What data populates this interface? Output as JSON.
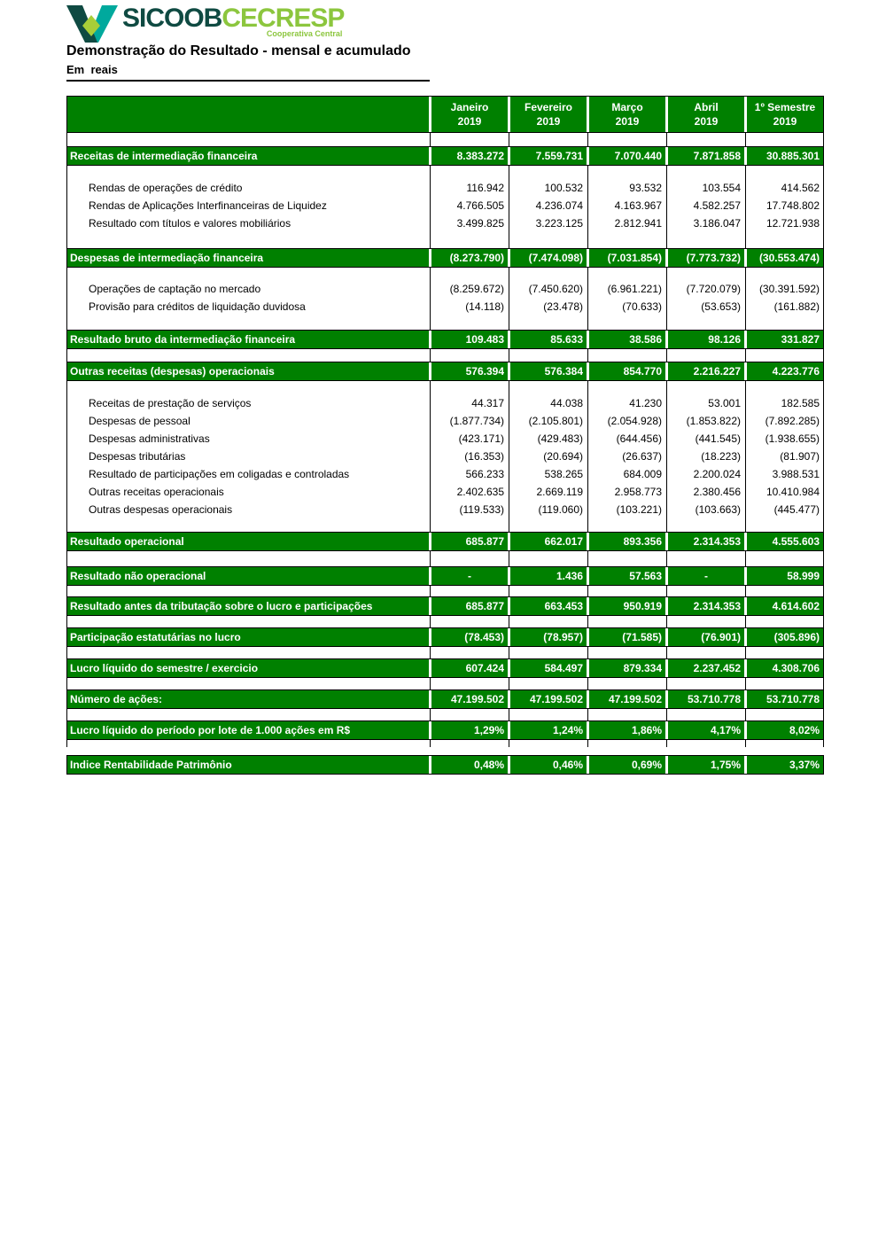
{
  "brand": {
    "name": "SICOOB",
    "suffix": "CECRESP",
    "tagline": "Cooperativa Central"
  },
  "title": "Demonstração do Resultado - mensal e acumulado",
  "unit_label": "Em  reais",
  "colors": {
    "table_green": "#008000",
    "header_text": "#ffffff",
    "brand_dark": "#0f4a42",
    "brand_teal": "#00a99d",
    "brand_lime": "#8cc63e",
    "border_black": "#000000"
  },
  "table": {
    "column_headers": [
      {
        "month": "Janeiro",
        "year": "2019"
      },
      {
        "month": "Fevereiro",
        "year": "2019"
      },
      {
        "month": "Março",
        "year": "2019"
      },
      {
        "month": "Abril",
        "year": "2019"
      },
      {
        "month": "1º Semestre",
        "year": "2019"
      }
    ],
    "rows": [
      {
        "type": "section",
        "label": "Receitas de intermediação financeira",
        "values": [
          "8.383.272",
          "7.559.731",
          "7.070.440",
          "7.871.858",
          "30.885.301"
        ]
      },
      {
        "type": "detail",
        "label": "Rendas de operações de crédito",
        "values": [
          "116.942",
          "100.532",
          "93.532",
          "103.554",
          "414.562"
        ]
      },
      {
        "type": "detail",
        "label": "Rendas de Aplicações Interfinanceiras de Liquidez",
        "values": [
          "4.766.505",
          "4.236.074",
          "4.163.967",
          "4.582.257",
          "17.748.802"
        ]
      },
      {
        "type": "detail",
        "label": "Resultado com títulos e valores mobiliários",
        "values": [
          "3.499.825",
          "3.223.125",
          "2.812.941",
          "3.186.047",
          "12.721.938"
        ]
      },
      {
        "type": "section",
        "label": "Despesas de intermediação financeira",
        "values": [
          "(8.273.790)",
          "(7.474.098)",
          "(7.031.854)",
          "(7.773.732)",
          "(30.553.474)"
        ]
      },
      {
        "type": "detail",
        "label": "Operações de captação no mercado",
        "values": [
          "(8.259.672)",
          "(7.450.620)",
          "(6.961.221)",
          "(7.720.079)",
          "(30.391.592)"
        ]
      },
      {
        "type": "detail",
        "label": "Provisão para créditos de liquidação duvidosa",
        "values": [
          "(14.118)",
          "(23.478)",
          "(70.633)",
          "(53.653)",
          "(161.882)"
        ]
      },
      {
        "type": "section",
        "label": "Resultado bruto da intermediação financeira",
        "values": [
          "109.483",
          "85.633",
          "38.586",
          "98.126",
          "331.827"
        ]
      },
      {
        "type": "section",
        "label": "Outras receitas (despesas) operacionais",
        "values": [
          "576.394",
          "576.384",
          "854.770",
          "2.216.227",
          "4.223.776"
        ]
      },
      {
        "type": "detail",
        "label": "Receitas de prestação de serviços",
        "values": [
          "44.317",
          "44.038",
          "41.230",
          "53.001",
          "182.585"
        ]
      },
      {
        "type": "detail",
        "label": "Despesas de pessoal",
        "values": [
          "(1.877.734)",
          "(2.105.801)",
          "(2.054.928)",
          "(1.853.822)",
          "(7.892.285)"
        ]
      },
      {
        "type": "detail",
        "label": "Despesas administrativas",
        "values": [
          "(423.171)",
          "(429.483)",
          "(644.456)",
          "(441.545)",
          "(1.938.655)"
        ]
      },
      {
        "type": "detail",
        "label": "Despesas tributárias",
        "values": [
          "(16.353)",
          "(20.694)",
          "(26.637)",
          "(18.223)",
          "(81.907)"
        ]
      },
      {
        "type": "detail",
        "label": "Resultado de participações em coligadas e controladas",
        "values": [
          "566.233",
          "538.265",
          "684.009",
          "2.200.024",
          "3.988.531"
        ]
      },
      {
        "type": "detail",
        "label": "Outras receitas operacionais",
        "values": [
          "2.402.635",
          "2.669.119",
          "2.958.773",
          "2.380.456",
          "10.410.984"
        ]
      },
      {
        "type": "detail",
        "label": "Outras despesas operacionais",
        "values": [
          "(119.533)",
          "(119.060)",
          "(103.221)",
          "(103.663)",
          "(445.477)"
        ]
      },
      {
        "type": "section",
        "label": "Resultado operacional",
        "values": [
          "685.877",
          "662.017",
          "893.356",
          "2.314.353",
          "4.555.603"
        ]
      },
      {
        "type": "section",
        "label": "Resultado não operacional",
        "values": [
          "-",
          "1.436",
          "57.563",
          "-",
          "58.999"
        ]
      },
      {
        "type": "section",
        "label": "Resultado antes da tributação sobre o lucro e participações",
        "values": [
          "685.877",
          "663.453",
          "950.919",
          "2.314.353",
          "4.614.602"
        ]
      },
      {
        "type": "section",
        "label": "Participação estatutárias no lucro",
        "values": [
          "(78.453)",
          "(78.957)",
          "(71.585)",
          "(76.901)",
          "(305.896)"
        ]
      },
      {
        "type": "section",
        "label": "Lucro líquido do semestre / exercicio",
        "values": [
          "607.424",
          "584.497",
          "879.334",
          "2.237.452",
          "4.308.706"
        ]
      },
      {
        "type": "section",
        "label": "Número de ações:",
        "values": [
          "47.199.502",
          "47.199.502",
          "47.199.502",
          "53.710.778",
          "53.710.778"
        ]
      },
      {
        "type": "section",
        "label": "Lucro líquido do período por lote de 1.000 ações em R$",
        "values": [
          "1,29%",
          "1,24%",
          "1,86%",
          "4,17%",
          "8,02%"
        ]
      },
      {
        "type": "section",
        "label": "Indice Rentabilidade Patrimônio",
        "values": [
          "0,48%",
          "0,46%",
          "0,69%",
          "1,75%",
          "3,37%"
        ]
      }
    ]
  }
}
